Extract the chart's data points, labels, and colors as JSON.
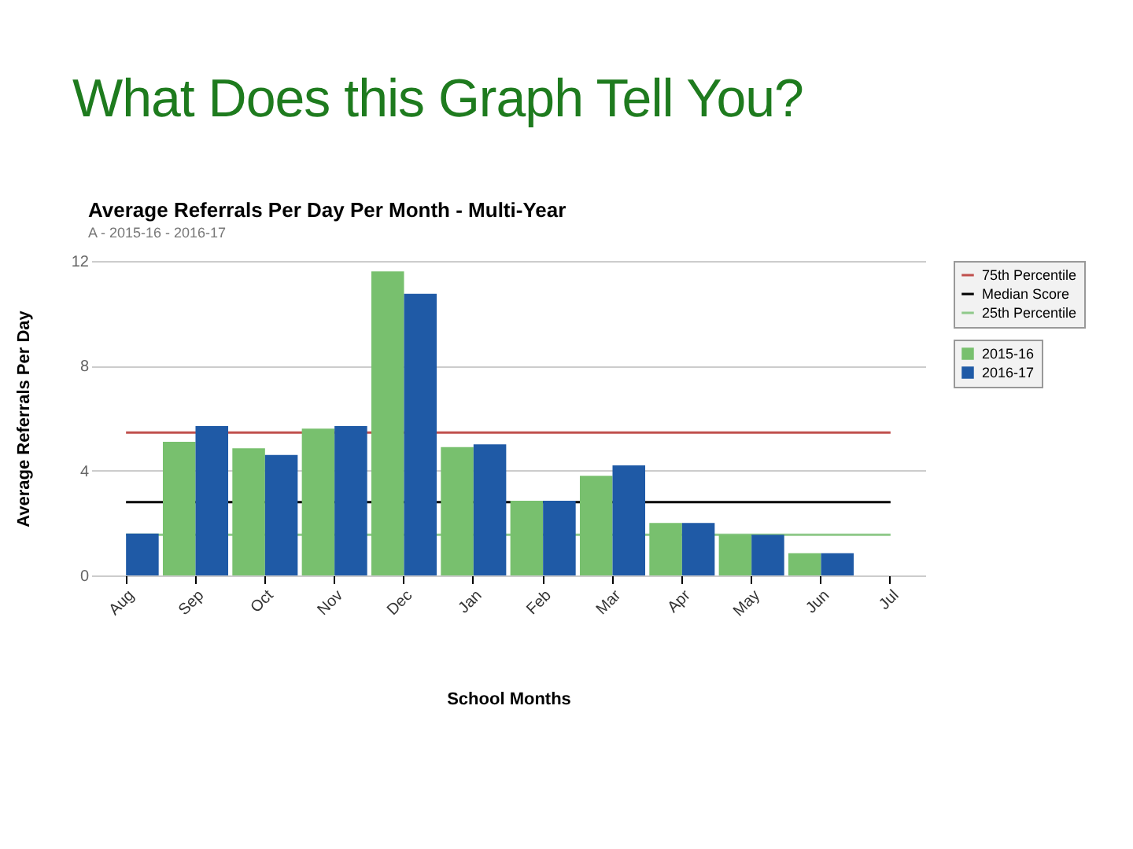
{
  "chart_data": {
    "type": "bar",
    "title": "What Does this Graph Tell You?",
    "subtitle": "Average Referrals Per Day Per Month - Multi-Year",
    "annotations": [
      "A - 2015-16 - 2016-17"
    ],
    "xlabel": "School Months",
    "ylabel": "Average Referrals Per Day",
    "categories": [
      "Aug",
      "Sep",
      "Oct",
      "Nov",
      "Dec",
      "Jan",
      "Feb",
      "Mar",
      "Apr",
      "May",
      "Jun",
      "Jul"
    ],
    "series": [
      {
        "name": "2015-16",
        "color": "#78c06e",
        "values": [
          null,
          5.1,
          4.85,
          5.6,
          11.6,
          4.9,
          2.85,
          3.8,
          2.0,
          1.55,
          0.85,
          null
        ]
      },
      {
        "name": "2016-17",
        "color": "#1f5aa6",
        "values": [
          1.6,
          5.7,
          4.6,
          5.7,
          10.75,
          5.0,
          2.85,
          4.2,
          2.0,
          1.55,
          0.85,
          null
        ]
      }
    ],
    "ref_lines": [
      {
        "axis": "y",
        "value": 5.45,
        "label": "75th Percentile",
        "color": "#c0504d"
      },
      {
        "axis": "y",
        "value": 2.8,
        "label": "Median Score",
        "color": "#000000"
      },
      {
        "axis": "y",
        "value": 1.55,
        "label": "25th Percentile",
        "color": "#8fc98a"
      }
    ],
    "ylim": [
      0,
      12
    ],
    "yticks": [
      0,
      4,
      8,
      12
    ],
    "grid": "y",
    "legend": "top right"
  }
}
